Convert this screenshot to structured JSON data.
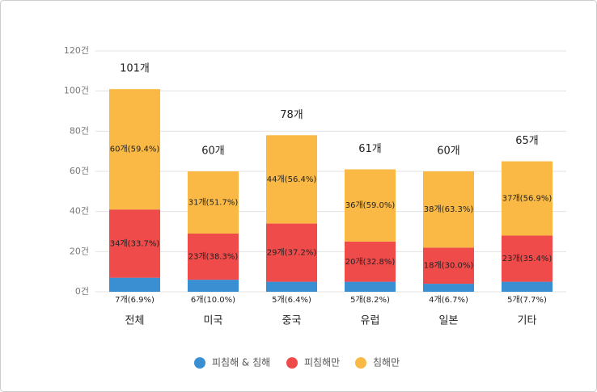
{
  "chart_data": {
    "type": "stacked-bar",
    "categories": [
      "전체",
      "미국",
      "중국",
      "유럽",
      "일본",
      "기타"
    ],
    "series": [
      {
        "name": "피침해 & 침해",
        "color": "#3a8fd3",
        "values": [
          7,
          6,
          5,
          5,
          4,
          5
        ],
        "value_labels": [
          "7개(6.9%)",
          "6개(10.0%)",
          "5개(6.4%)",
          "5개(8.2%)",
          "4개(6.7%)",
          "5개(7.7%)"
        ]
      },
      {
        "name": "피침해만",
        "color": "#ef4b4b",
        "values": [
          34,
          23,
          29,
          20,
          18,
          23
        ],
        "value_labels": [
          "34개(33.7%)",
          "23개(38.3%)",
          "29개(37.2%)",
          "20개(32.8%)",
          "18개(30.0%)",
          "23개(35.4%)"
        ]
      },
      {
        "name": "침해만",
        "color": "#f9b944",
        "values": [
          60,
          31,
          44,
          36,
          38,
          37
        ],
        "value_labels": [
          "60개(59.4%)",
          "31개(51.7%)",
          "44개(56.4%)",
          "36개(59.0%)",
          "38개(63.3%)",
          "37개(56.9%)"
        ]
      }
    ],
    "totals": [
      101,
      60,
      78,
      61,
      60,
      65
    ],
    "total_labels": [
      "101개",
      "60개",
      "78개",
      "61개",
      "60개",
      "65개"
    ],
    "ylim": [
      0,
      120
    ],
    "yticks": [
      {
        "value": 0,
        "label": "0건"
      },
      {
        "value": 20,
        "label": "20건"
      },
      {
        "value": 40,
        "label": "40건"
      },
      {
        "value": 60,
        "label": "60건"
      },
      {
        "value": 80,
        "label": "80건"
      },
      {
        "value": 100,
        "label": "100건"
      },
      {
        "value": 120,
        "label": "120건"
      }
    ],
    "grid": true,
    "legend": "bottom"
  }
}
